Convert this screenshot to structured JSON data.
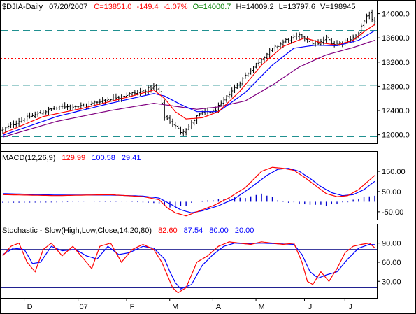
{
  "colors": {
    "price_bar": "#000000",
    "ma_fast": "#ff0000",
    "ma_mid": "#0000ff",
    "ma_slow": "#800080",
    "support_resistance": "#008080",
    "red_dotted": "#ff0000",
    "macd_line": "#0000ff",
    "signal_line": "#ff0000",
    "histogram": "#0000cc",
    "stoch_k": "#ff0000",
    "stoch_d": "#0000ff",
    "stoch_levels": "#000080"
  },
  "header": {
    "symbol": "$DJIA-Daily",
    "date": "07/20/2007",
    "close": "C=13851.0",
    "change": "-149.4",
    "change_pct": "-1.07%",
    "open": "O=14000.7",
    "high": "H=14009.2",
    "low": "L=13797.6",
    "volume": "V=198945"
  },
  "macd_header": {
    "label": "MACD(12,26,9)",
    "macd_value": "129.99",
    "signal_value": "100.58",
    "hist_value": "29.41"
  },
  "stoch_header": {
    "label": "Stochastic - Slow(High,Low,Close,14,20,80)",
    "k_value": "82.60",
    "d_value": "87.54",
    "upper": "80.00",
    "lower": "20.00"
  },
  "chart_data": [
    {
      "type": "ohlc",
      "panel": "price",
      "ylim": [
        11880,
        14180
      ],
      "yticks": [
        "14000.0",
        "13600.0",
        "13200.0",
        "12800.0",
        "12400.0",
        "12000.0"
      ],
      "ytick_values": [
        14000,
        13600,
        13200,
        12800,
        12400,
        12000
      ],
      "horizontal_lines": [
        {
          "value": 13720,
          "style": "dashed",
          "color_key": "support_resistance"
        },
        {
          "value": 12820,
          "style": "dashed",
          "color_key": "support_resistance"
        },
        {
          "value": 11970,
          "style": "dashed",
          "color_key": "support_resistance"
        },
        {
          "value": 13260,
          "style": "dotted",
          "color_key": "red_dotted"
        }
      ],
      "month_labels": [
        "D",
        "07",
        "F",
        "M",
        "A",
        "M",
        "J",
        "J"
      ],
      "month_label_index": [
        10,
        30,
        48,
        64,
        80,
        96,
        114,
        129
      ],
      "anchors": [
        [
          0,
          12080
        ],
        [
          6,
          12230
        ],
        [
          12,
          12330
        ],
        [
          18,
          12420
        ],
        [
          24,
          12480
        ],
        [
          30,
          12470
        ],
        [
          36,
          12560
        ],
        [
          42,
          12620
        ],
        [
          48,
          12680
        ],
        [
          52,
          12720
        ],
        [
          56,
          12790
        ],
        [
          58,
          12700
        ],
        [
          60,
          12300
        ],
        [
          63,
          12180
        ],
        [
          66,
          12050
        ],
        [
          69,
          12130
        ],
        [
          72,
          12300
        ],
        [
          75,
          12380
        ],
        [
          78,
          12380
        ],
        [
          81,
          12500
        ],
        [
          84,
          12680
        ],
        [
          87,
          12820
        ],
        [
          90,
          12980
        ],
        [
          93,
          13120
        ],
        [
          96,
          13260
        ],
        [
          99,
          13380
        ],
        [
          102,
          13470
        ],
        [
          105,
          13560
        ],
        [
          108,
          13600
        ],
        [
          111,
          13640
        ],
        [
          114,
          13530
        ],
        [
          117,
          13490
        ],
        [
          120,
          13600
        ],
        [
          123,
          13500
        ],
        [
          126,
          13530
        ],
        [
          129,
          13580
        ],
        [
          132,
          13660
        ],
        [
          134,
          13900
        ],
        [
          136,
          13990
        ],
        [
          138,
          13851
        ]
      ],
      "ma_fast_anchors": [
        [
          0,
          12020
        ],
        [
          15,
          12300
        ],
        [
          30,
          12440
        ],
        [
          48,
          12640
        ],
        [
          56,
          12740
        ],
        [
          60,
          12600
        ],
        [
          64,
          12380
        ],
        [
          68,
          12260
        ],
        [
          74,
          12280
        ],
        [
          80,
          12380
        ],
        [
          88,
          12720
        ],
        [
          96,
          13150
        ],
        [
          104,
          13460
        ],
        [
          112,
          13600
        ],
        [
          118,
          13520
        ],
        [
          124,
          13480
        ],
        [
          130,
          13560
        ],
        [
          134,
          13700
        ],
        [
          138,
          13820
        ]
      ],
      "ma_mid_anchors": [
        [
          0,
          11990
        ],
        [
          20,
          12300
        ],
        [
          40,
          12520
        ],
        [
          56,
          12680
        ],
        [
          60,
          12640
        ],
        [
          66,
          12500
        ],
        [
          72,
          12380
        ],
        [
          80,
          12380
        ],
        [
          90,
          12700
        ],
        [
          100,
          13150
        ],
        [
          108,
          13430
        ],
        [
          116,
          13480
        ],
        [
          124,
          13470
        ],
        [
          132,
          13560
        ],
        [
          138,
          13720
        ]
      ],
      "ma_slow_anchors": [
        [
          0,
          11960
        ],
        [
          20,
          12220
        ],
        [
          40,
          12400
        ],
        [
          56,
          12520
        ],
        [
          64,
          12470
        ],
        [
          72,
          12420
        ],
        [
          80,
          12460
        ],
        [
          90,
          12560
        ],
        [
          100,
          12820
        ],
        [
          110,
          13120
        ],
        [
          120,
          13320
        ],
        [
          130,
          13440
        ],
        [
          138,
          13560
        ]
      ]
    },
    {
      "type": "macd",
      "panel": "macd",
      "ylim": [
        -85,
        195
      ],
      "yticks": [
        "150.00",
        "50.00",
        "-50.00"
      ],
      "ytick_values": [
        150,
        50,
        -50
      ],
      "macd_anchors": [
        [
          0,
          35
        ],
        [
          20,
          30
        ],
        [
          40,
          35
        ],
        [
          52,
          25
        ],
        [
          58,
          10
        ],
        [
          61,
          -30
        ],
        [
          64,
          -55
        ],
        [
          68,
          -70
        ],
        [
          72,
          -50
        ],
        [
          78,
          -20
        ],
        [
          84,
          20
        ],
        [
          90,
          70
        ],
        [
          96,
          150
        ],
        [
          100,
          170
        ],
        [
          104,
          165
        ],
        [
          108,
          155
        ],
        [
          112,
          120
        ],
        [
          116,
          80
        ],
        [
          120,
          40
        ],
        [
          124,
          25
        ],
        [
          128,
          30
        ],
        [
          132,
          60
        ],
        [
          135,
          95
        ],
        [
          138,
          130
        ]
      ],
      "signal_anchors": [
        [
          0,
          40
        ],
        [
          20,
          33
        ],
        [
          40,
          33
        ],
        [
          52,
          28
        ],
        [
          58,
          18
        ],
        [
          62,
          -10
        ],
        [
          66,
          -40
        ],
        [
          70,
          -55
        ],
        [
          74,
          -45
        ],
        [
          80,
          -20
        ],
        [
          86,
          15
        ],
        [
          92,
          70
        ],
        [
          98,
          130
        ],
        [
          102,
          160
        ],
        [
          106,
          165
        ],
        [
          110,
          150
        ],
        [
          114,
          115
        ],
        [
          118,
          75
        ],
        [
          122,
          45
        ],
        [
          126,
          30
        ],
        [
          130,
          35
        ],
        [
          134,
          60
        ],
        [
          138,
          100.58
        ]
      ]
    },
    {
      "type": "stochastic",
      "panel": "stoch",
      "ylim": [
        5,
        105
      ],
      "yticks": [
        "90.00",
        "60.00",
        "30.00"
      ],
      "ytick_values": [
        90,
        60,
        30
      ],
      "levels": [
        80,
        20
      ],
      "k_anchors": [
        [
          0,
          70
        ],
        [
          3,
          85
        ],
        [
          6,
          90
        ],
        [
          9,
          60
        ],
        [
          12,
          45
        ],
        [
          15,
          80
        ],
        [
          18,
          90
        ],
        [
          22,
          70
        ],
        [
          26,
          85
        ],
        [
          30,
          65
        ],
        [
          33,
          50
        ],
        [
          36,
          85
        ],
        [
          40,
          90
        ],
        [
          44,
          60
        ],
        [
          48,
          80
        ],
        [
          52,
          88
        ],
        [
          56,
          80
        ],
        [
          59,
          60
        ],
        [
          61,
          40
        ],
        [
          63,
          20
        ],
        [
          65,
          12
        ],
        [
          68,
          20
        ],
        [
          72,
          60
        ],
        [
          76,
          70
        ],
        [
          80,
          85
        ],
        [
          84,
          92
        ],
        [
          88,
          90
        ],
        [
          92,
          88
        ],
        [
          96,
          92
        ],
        [
          100,
          90
        ],
        [
          104,
          88
        ],
        [
          108,
          90
        ],
        [
          111,
          60
        ],
        [
          113,
          30
        ],
        [
          115,
          25
        ],
        [
          118,
          45
        ],
        [
          121,
          30
        ],
        [
          124,
          50
        ],
        [
          127,
          75
        ],
        [
          130,
          85
        ],
        [
          133,
          88
        ],
        [
          136,
          90
        ],
        [
          138,
          82.6
        ]
      ],
      "d_anchors": [
        [
          0,
          72
        ],
        [
          4,
          82
        ],
        [
          8,
          80
        ],
        [
          11,
          58
        ],
        [
          14,
          60
        ],
        [
          18,
          85
        ],
        [
          22,
          78
        ],
        [
          27,
          80
        ],
        [
          31,
          70
        ],
        [
          35,
          65
        ],
        [
          39,
          85
        ],
        [
          43,
          72
        ],
        [
          47,
          75
        ],
        [
          52,
          85
        ],
        [
          56,
          82
        ],
        [
          60,
          65
        ],
        [
          62,
          45
        ],
        [
          64,
          28
        ],
        [
          66,
          18
        ],
        [
          70,
          25
        ],
        [
          74,
          55
        ],
        [
          78,
          72
        ],
        [
          82,
          85
        ],
        [
          86,
          90
        ],
        [
          90,
          89
        ],
        [
          96,
          90
        ],
        [
          102,
          89
        ],
        [
          108,
          88
        ],
        [
          111,
          72
        ],
        [
          114,
          45
        ],
        [
          117,
          35
        ],
        [
          120,
          40
        ],
        [
          124,
          45
        ],
        [
          128,
          65
        ],
        [
          132,
          82
        ],
        [
          136,
          88
        ],
        [
          138,
          87.54
        ]
      ]
    }
  ]
}
